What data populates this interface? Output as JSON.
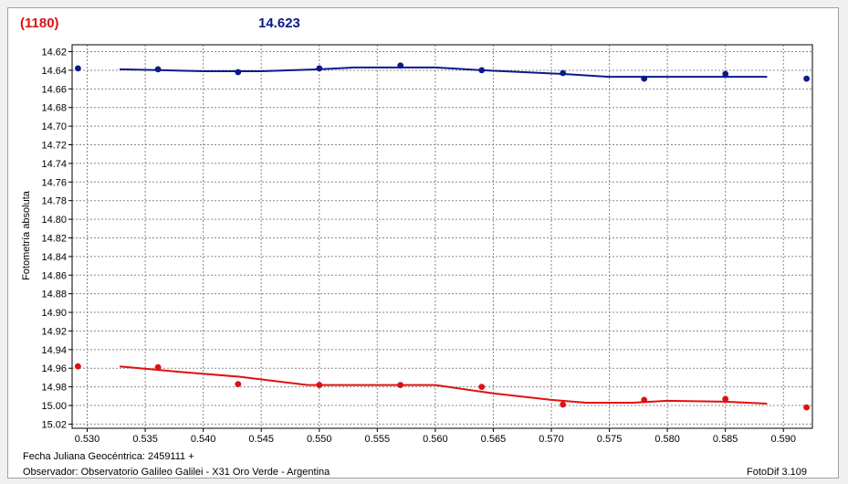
{
  "header": {
    "object_id": "(1180)",
    "magnitude": "14.623"
  },
  "footer": {
    "jd_label": "Fecha Juliana Geocéntrica: 2459111 +",
    "observer": "Observador: Observatorio Galileo Galilei - X31 Oro Verde - Argentina",
    "version": "FotoDif 3.109"
  },
  "colors": {
    "series_blue": "#0a1a8c",
    "series_red": "#e01010",
    "grid": "#888888"
  },
  "chart_data": {
    "type": "scatter",
    "ylabel": "Fotometría absoluta",
    "xlabel": "",
    "xlim": [
      0.5287,
      0.5925
    ],
    "ylim": [
      14.6126,
      15.0245
    ],
    "y_inverted": true,
    "grid": true,
    "xticks": [
      "0.530",
      "0.535",
      "0.540",
      "0.545",
      "0.550",
      "0.555",
      "0.560",
      "0.565",
      "0.570",
      "0.575",
      "0.580",
      "0.585",
      "0.590"
    ],
    "yticks": [
      "14.62",
      "14.64",
      "14.66",
      "14.68",
      "14.70",
      "14.72",
      "14.74",
      "14.76",
      "14.78",
      "14.80",
      "14.82",
      "14.84",
      "14.86",
      "14.88",
      "14.90",
      "14.92",
      "14.94",
      "14.96",
      "14.98",
      "15.00",
      "15.02"
    ],
    "series": [
      {
        "color": "#0a1a8c",
        "points": [
          [
            0.5292,
            14.638
          ],
          [
            0.5361,
            14.639
          ],
          [
            0.543,
            14.642
          ],
          [
            0.55,
            14.638
          ],
          [
            0.557,
            14.635
          ],
          [
            0.564,
            14.64
          ],
          [
            0.571,
            14.643
          ],
          [
            0.578,
            14.649
          ],
          [
            0.585,
            14.644
          ],
          [
            0.592,
            14.649
          ]
        ],
        "fit": [
          [
            0.5328,
            14.639
          ],
          [
            0.5365,
            14.64
          ],
          [
            0.54,
            14.641
          ],
          [
            0.545,
            14.641
          ],
          [
            0.55,
            14.639
          ],
          [
            0.553,
            14.637
          ],
          [
            0.56,
            14.637
          ],
          [
            0.564,
            14.64
          ],
          [
            0.571,
            14.644
          ],
          [
            0.575,
            14.647
          ],
          [
            0.58,
            14.647
          ],
          [
            0.5886,
            14.647
          ]
        ]
      },
      {
        "color": "#e01010",
        "points": [
          [
            0.5292,
            14.958
          ],
          [
            0.5361,
            14.959
          ],
          [
            0.543,
            14.977
          ],
          [
            0.55,
            14.978
          ],
          [
            0.557,
            14.978
          ],
          [
            0.564,
            14.98
          ],
          [
            0.571,
            14.999
          ],
          [
            0.578,
            14.994
          ],
          [
            0.585,
            14.993
          ],
          [
            0.592,
            15.002
          ]
        ],
        "fit": [
          [
            0.5328,
            14.958
          ],
          [
            0.538,
            14.964
          ],
          [
            0.543,
            14.969
          ],
          [
            0.549,
            14.978
          ],
          [
            0.555,
            14.978
          ],
          [
            0.56,
            14.978
          ],
          [
            0.565,
            14.987
          ],
          [
            0.57,
            14.994
          ],
          [
            0.573,
            14.997
          ],
          [
            0.577,
            14.997
          ],
          [
            0.58,
            14.995
          ],
          [
            0.585,
            14.996
          ],
          [
            0.5886,
            14.998
          ]
        ]
      }
    ]
  }
}
